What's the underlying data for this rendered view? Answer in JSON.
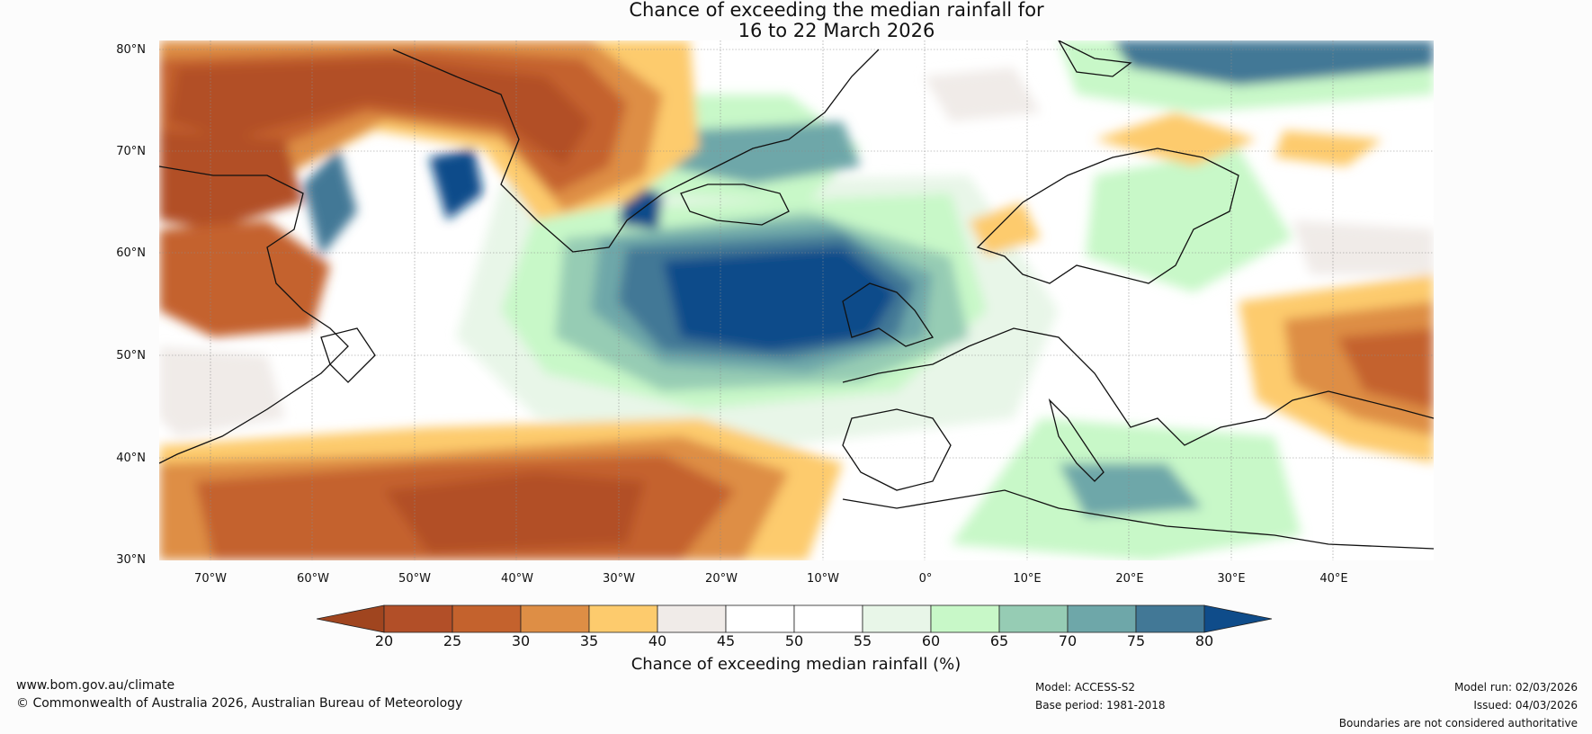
{
  "title_line1": "Chance of exceeding the median rainfall for",
  "title_line2": "16 to 22 March 2026",
  "lat_labels": [
    "80°N",
    "70°N",
    "60°N",
    "50°N",
    "40°N",
    "30°N"
  ],
  "lon_labels": [
    "70°W",
    "60°W",
    "50°W",
    "40°W",
    "30°W",
    "20°W",
    "10°W",
    "0°",
    "10°E",
    "20°E",
    "30°E",
    "40°E"
  ],
  "colorbar": {
    "ticks": [
      "20",
      "25",
      "30",
      "35",
      "40",
      "45",
      "50",
      "55",
      "60",
      "65",
      "70",
      "75",
      "80"
    ],
    "colors": [
      "#a0451f",
      "#b24f28",
      "#c4622d",
      "#de8e45",
      "#fdcb6d",
      "#f0ebe8",
      "#ffffff",
      "#ffffff",
      "#e8f6e8",
      "#c8f8c8",
      "#96ccb4",
      "#6ea7a9",
      "#427896",
      "#0f4c8a"
    ],
    "label": "Chance of exceeding median rainfall (%)"
  },
  "footer": {
    "website": "www.bom.gov.au/climate",
    "copyright": "© Commonwealth of Australia 2026, Australian Bureau of Meteorology",
    "model": "Model: ACCESS-S2",
    "base_period": "Base period: 1981-2018",
    "model_run": "Model run: 02/03/2026",
    "issued": "Issued: 04/03/2026",
    "disclaimer": "Boundaries are not considered authoritative"
  }
}
